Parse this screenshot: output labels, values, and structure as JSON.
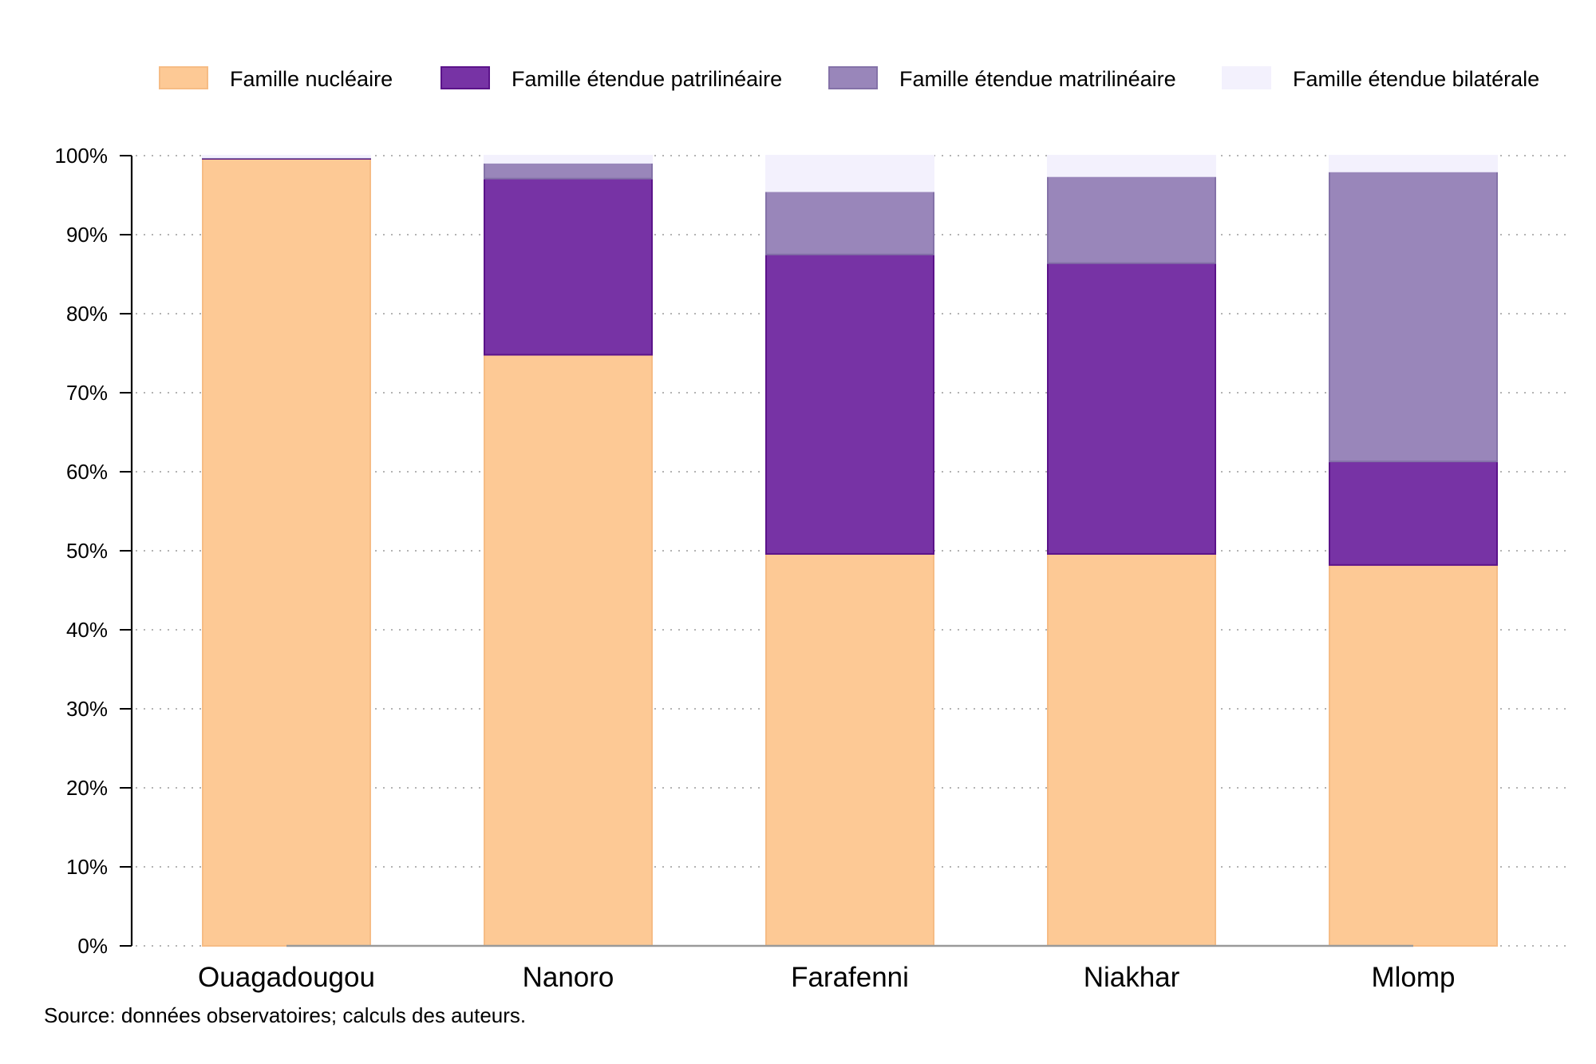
{
  "chart_data": {
    "type": "bar",
    "stacked": true,
    "categories": [
      "Ouagadougou",
      "Nanoro",
      "Farafenni",
      "Niakhar",
      "Mlomp"
    ],
    "series": [
      {
        "name": "Famille nucléaire",
        "color": "#FDC995",
        "stroke": "#F6BC85",
        "values": [
          99.6,
          74.8,
          49.6,
          49.6,
          48.2
        ]
      },
      {
        "name": "Famille étendue patrilinéaire",
        "color": "#7733A5",
        "stroke": "#5B138A",
        "values": [
          0.1,
          22.3,
          37.9,
          36.8,
          13.1
        ]
      },
      {
        "name": "Famille étendue matrilinéaire",
        "color": "#9986BA",
        "stroke": "#8472A8",
        "values": [
          0.1,
          2.0,
          8.0,
          11.0,
          36.7
        ]
      },
      {
        "name": "Famille étendue bilatérale",
        "color": "#F3F1FD",
        "stroke": "#F3F1FD",
        "values": [
          0.2,
          0.9,
          4.5,
          2.6,
          2.0
        ]
      }
    ],
    "ylim": [
      0,
      100
    ],
    "yticks": [
      0,
      10,
      20,
      30,
      40,
      50,
      60,
      70,
      80,
      90,
      100
    ],
    "ytick_labels": [
      "0%",
      "10%",
      "20%",
      "30%",
      "40%",
      "50%",
      "60%",
      "70%",
      "80%",
      "90%",
      "100%"
    ],
    "grid": true,
    "legend_position": "top",
    "note": "Source: données observatoires; calculs des auteurs."
  }
}
